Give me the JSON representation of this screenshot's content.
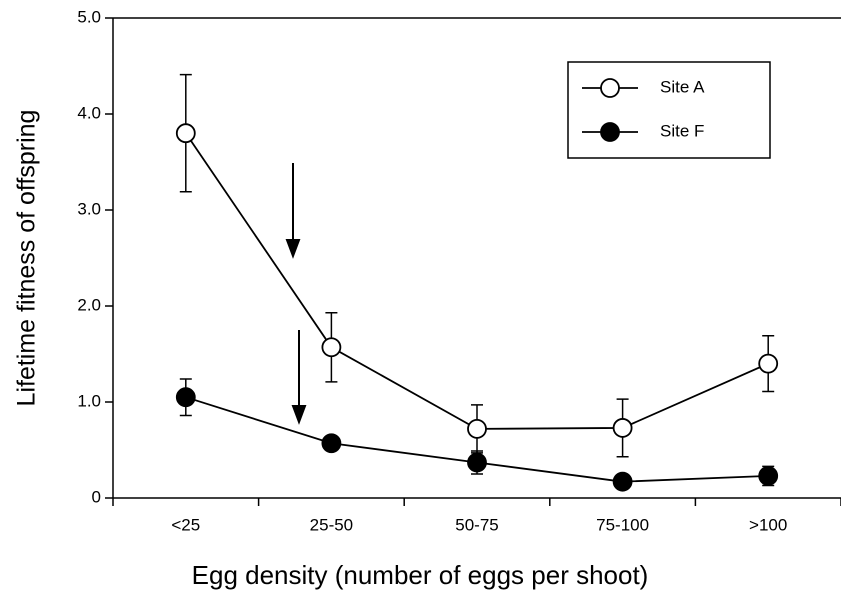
{
  "chart_data": {
    "type": "line",
    "x_label": "Egg density (number of eggs per shoot)",
    "y_label": "Lifetime fitness of offspring",
    "categories": [
      "<25",
      "25-50",
      "50-75",
      "75-100",
      ">100"
    ],
    "series": [
      {
        "name": "Site A",
        "color": "#000000",
        "marker": "open",
        "values": [
          3.8,
          1.57,
          0.72,
          0.73,
          1.4
        ],
        "errors": [
          0.61,
          0.36,
          0.25,
          0.3,
          0.29
        ]
      },
      {
        "name": "Site F",
        "color": "#000000",
        "marker": "filled",
        "values": [
          1.05,
          0.57,
          0.37,
          0.17,
          0.23
        ],
        "errors": [
          0.19,
          0.05,
          0.12,
          0.03,
          0.1
        ]
      }
    ],
    "ylim": [
      0,
      5
    ],
    "yticks": [
      0,
      {
        "value": 1,
        "label": "1.0"
      },
      {
        "value": 2,
        "label": "2.0"
      },
      {
        "value": 3,
        "label": "3.0"
      },
      {
        "value": 4,
        "label": "4.0"
      },
      {
        "value": 5,
        "label": "5.0"
      }
    ],
    "legend": "upper right"
  }
}
